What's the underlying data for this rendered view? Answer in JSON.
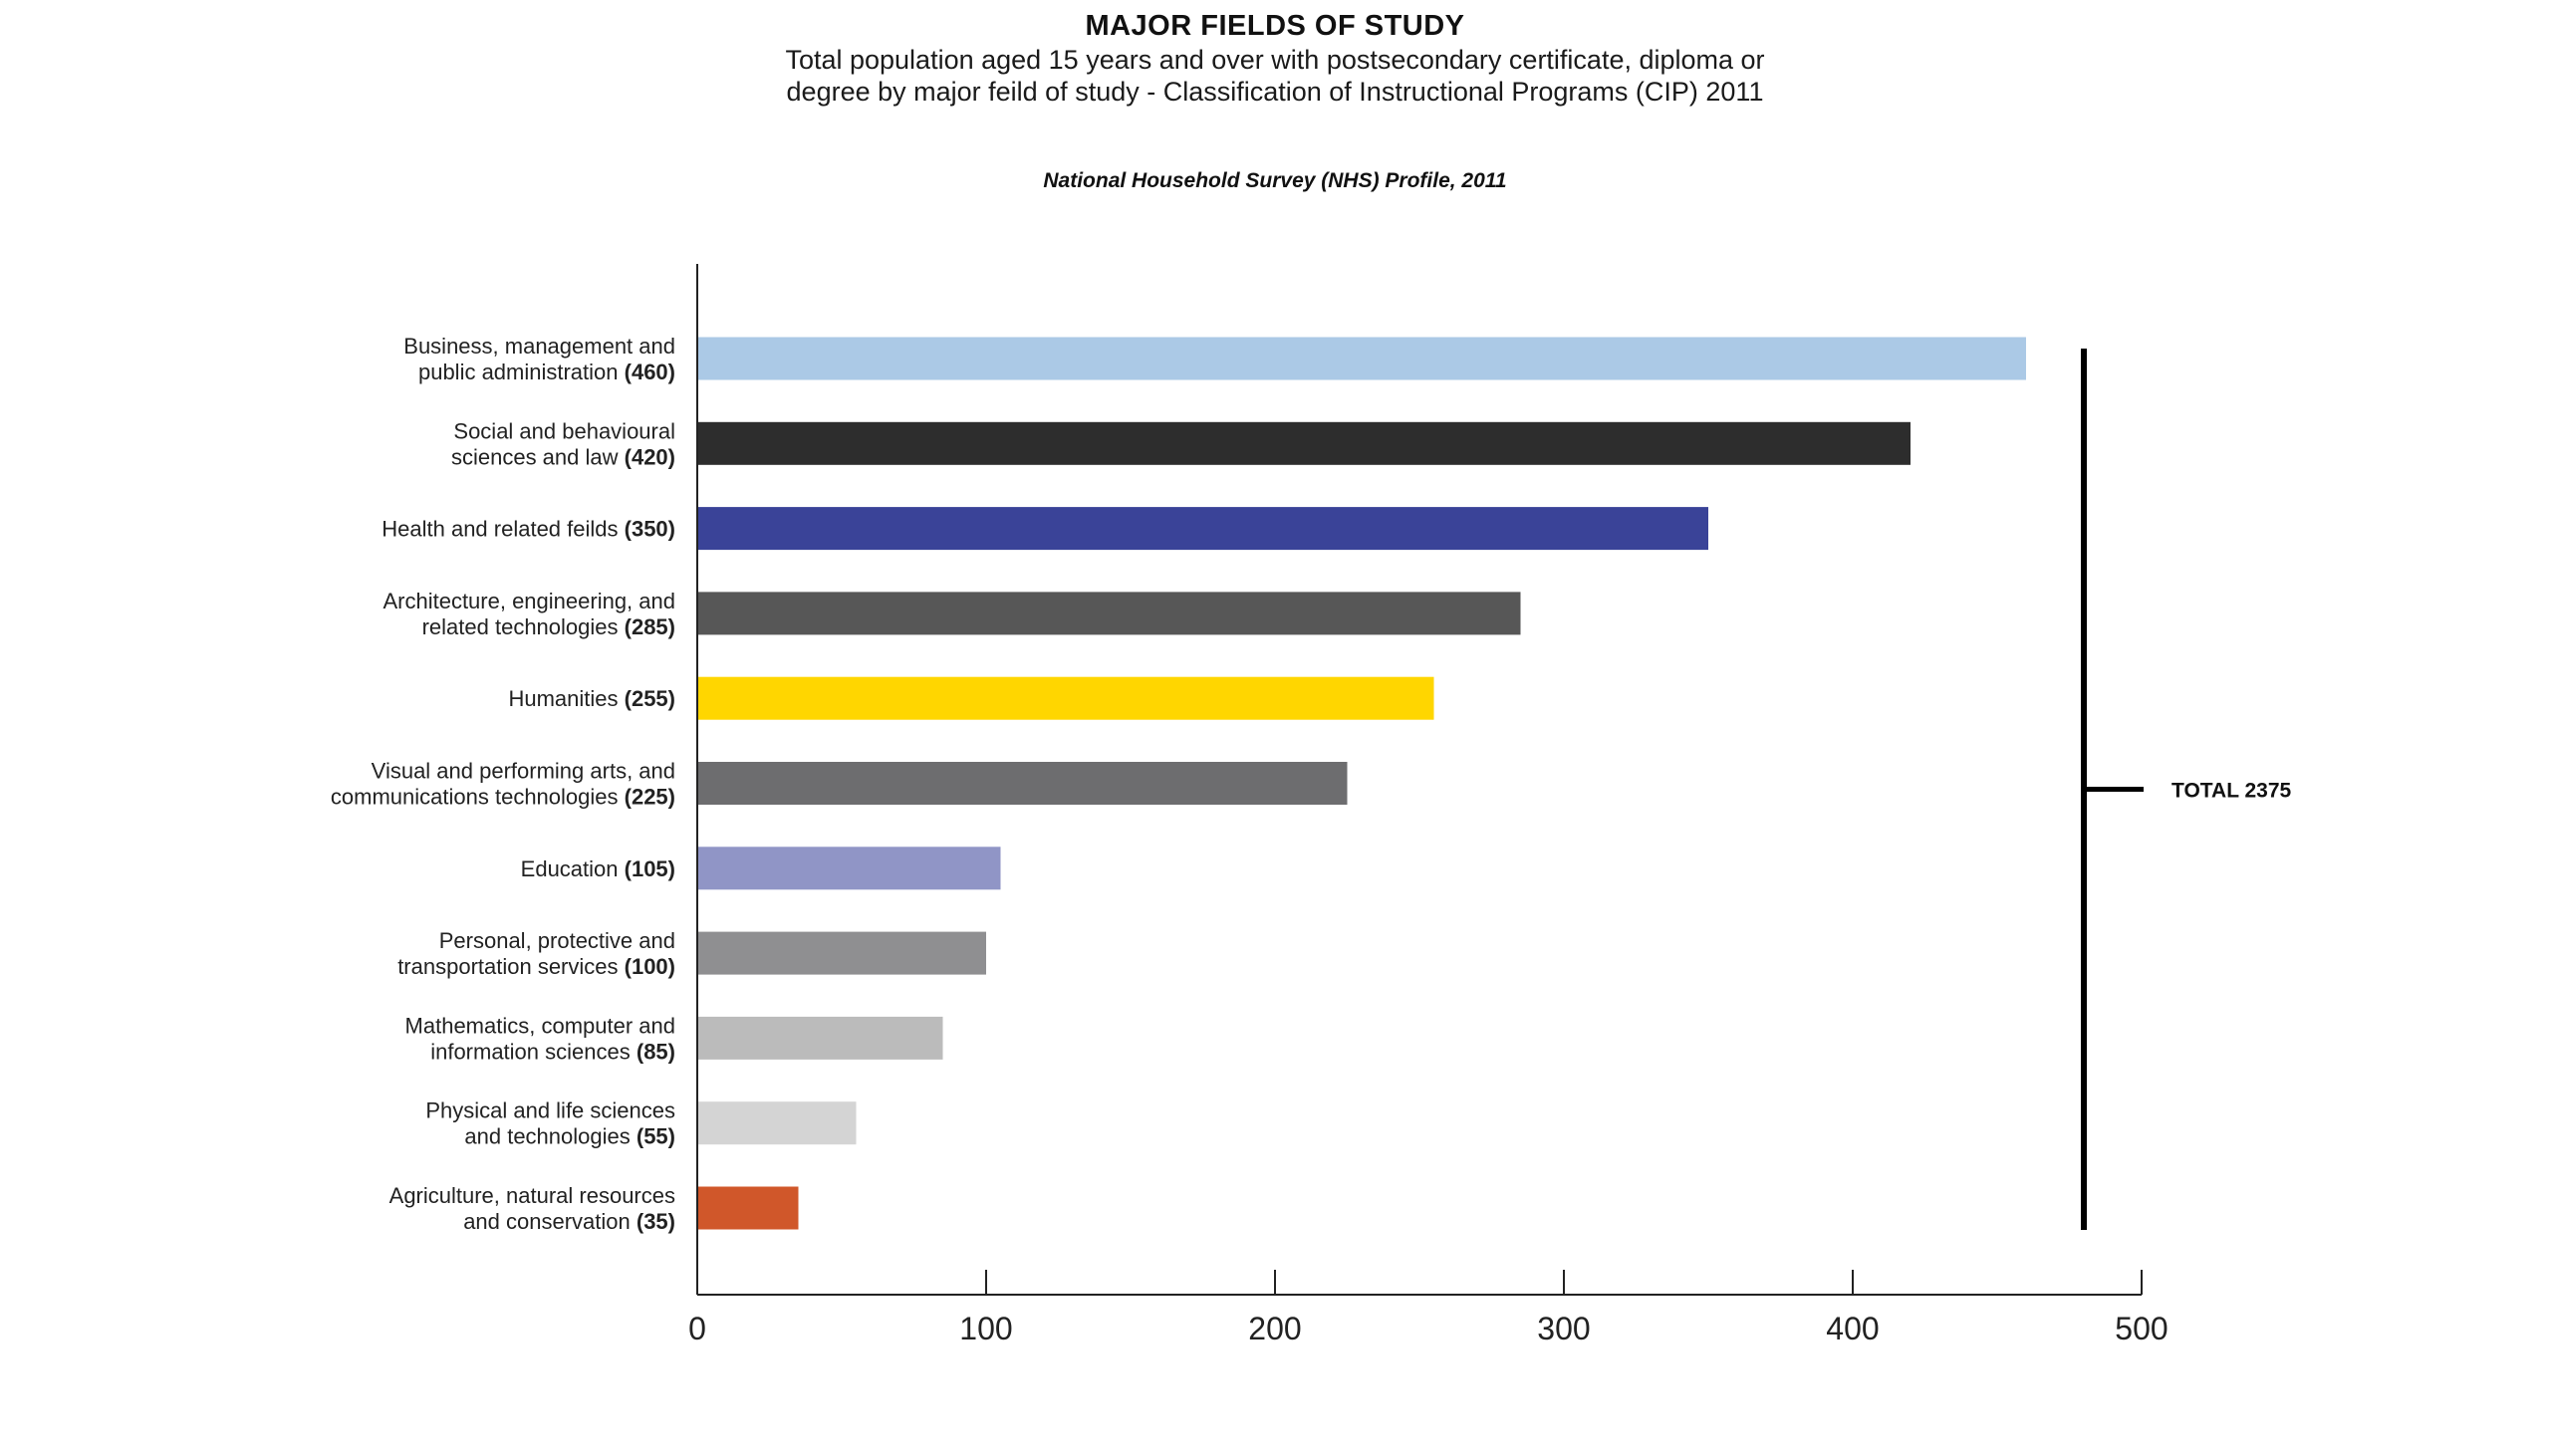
{
  "chart_data": {
    "type": "bar",
    "orientation": "horizontal",
    "title": "MAJOR FIELDS OF STUDY",
    "subtitle": "Total population aged 15 years and over with postsecondary certificate, diploma or degree by major feild of study - Classification of Instructional Programs (CIP) 2011",
    "source": "National Household Survey (NHS) Profile, 2011",
    "xlim": [
      0,
      500
    ],
    "xticks": [
      "0",
      "100",
      "200",
      "300",
      "400",
      "500"
    ],
    "grid": false,
    "legend": "none",
    "categories": [
      {
        "lines": [
          "Business, management and",
          "public administration"
        ],
        "value": 460,
        "value_text": "(460)",
        "color": "#abc9e6"
      },
      {
        "lines": [
          "Social and behavioural",
          "sciences and law"
        ],
        "value": 420,
        "value_text": "(420)",
        "color": "#2d2d2d"
      },
      {
        "lines": [
          "Health and related feilds"
        ],
        "value": 350,
        "value_text": "(350)",
        "color": "#3a4398"
      },
      {
        "lines": [
          "Architecture, engineering, and",
          "related technologies"
        ],
        "value": 285,
        "value_text": "(285)",
        "color": "#575757"
      },
      {
        "lines": [
          "Humanities"
        ],
        "value": 255,
        "value_text": "(255)",
        "color": "#ffd600"
      },
      {
        "lines": [
          "Visual and performing arts, and",
          "communications technologies"
        ],
        "value": 225,
        "value_text": "(225)",
        "color": "#6d6d6f"
      },
      {
        "lines": [
          "Education"
        ],
        "value": 105,
        "value_text": "(105)",
        "color": "#9095c6"
      },
      {
        "lines": [
          "Personal, protective and",
          "transportation services"
        ],
        "value": 100,
        "value_text": "(100)",
        "color": "#8f8f91"
      },
      {
        "lines": [
          "Mathematics, computer and",
          "information sciences"
        ],
        "value": 85,
        "value_text": "(85)",
        "color": "#bbbbbb"
      },
      {
        "lines": [
          "Physical and life sciences",
          "and technologies"
        ],
        "value": 55,
        "value_text": "(55)",
        "color": "#d4d4d4"
      },
      {
        "lines": [
          "Agriculture, natural resources",
          "and conservation"
        ],
        "value": 35,
        "value_text": "(35)",
        "color": "#d0572a"
      }
    ],
    "annotation": "TOTAL 2375"
  }
}
